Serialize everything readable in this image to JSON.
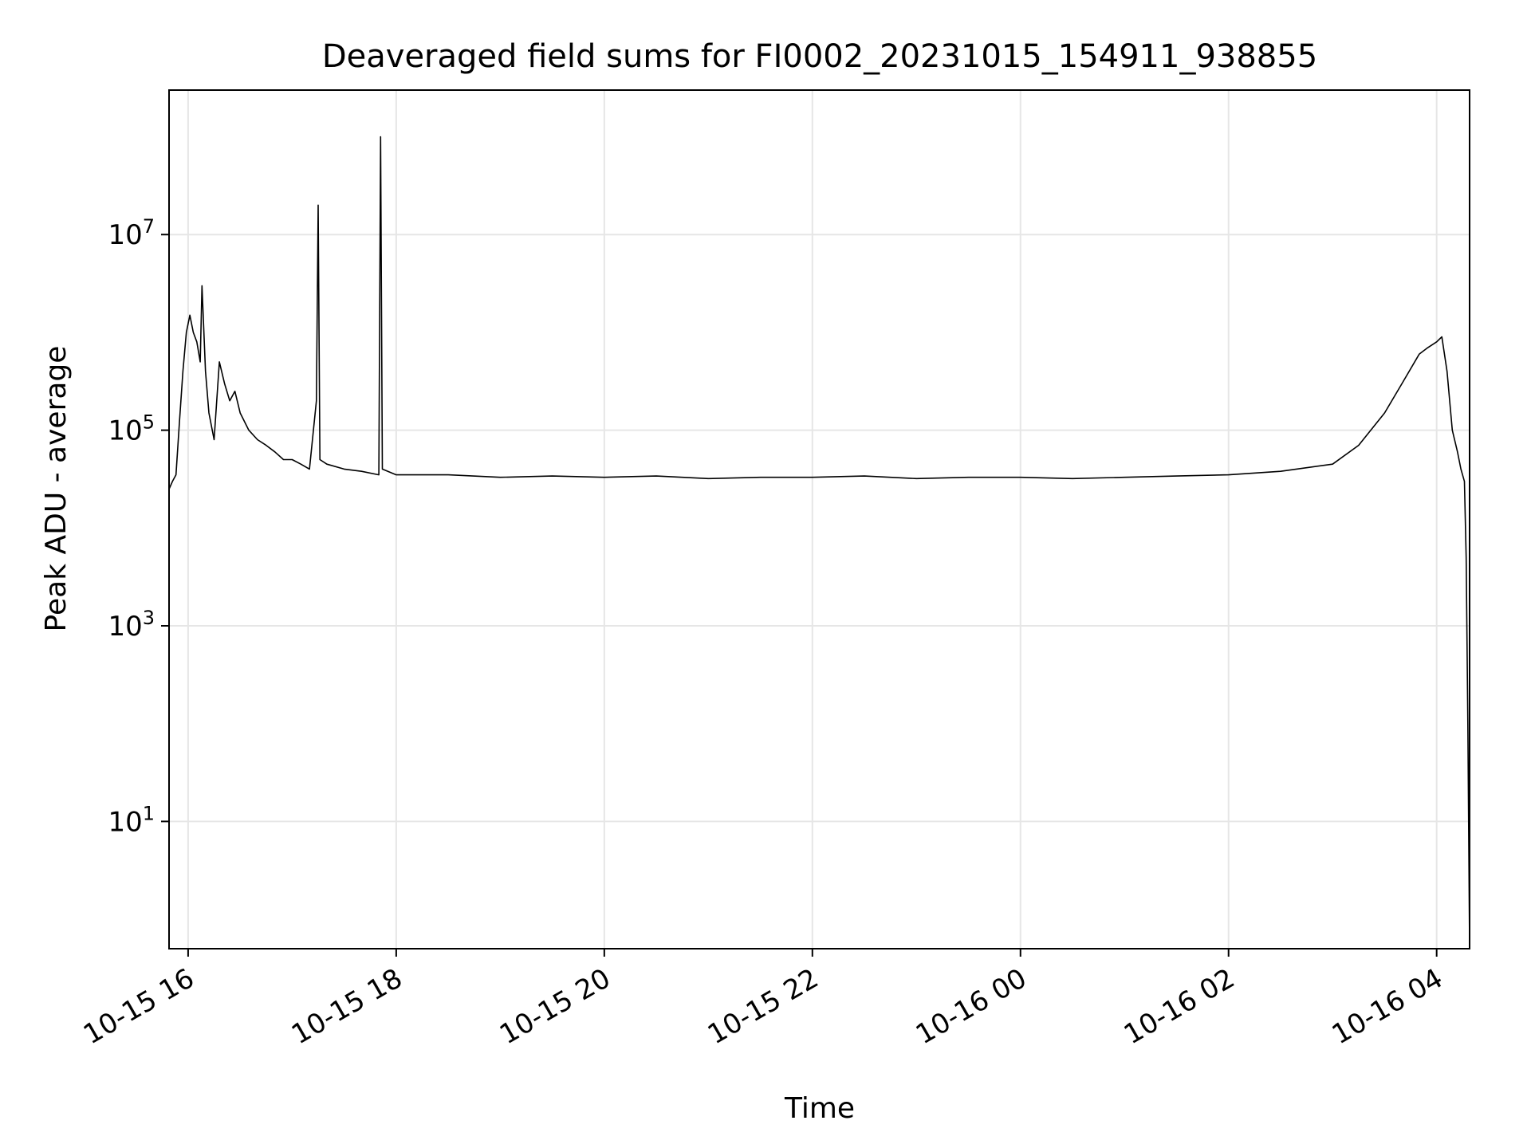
{
  "chart_data": {
    "type": "line",
    "title": "Deaveraged field sums for FI0002_20231015_154911_938855",
    "xlabel": "Time",
    "ylabel": "Peak ADU - average",
    "y_scale": "log",
    "xlim": [
      "2023-10-15 15:49",
      "2023-10-16 04:19"
    ],
    "ylim": [
      0.5,
      300000000
    ],
    "grid": true,
    "line_color": "#000000",
    "grid_color": "#e6e6e6",
    "x_ticks": [
      {
        "value": "2023-10-15 16:00",
        "label": "10-15 16"
      },
      {
        "value": "2023-10-15 18:00",
        "label": "10-15 18"
      },
      {
        "value": "2023-10-15 20:00",
        "label": "10-15 20"
      },
      {
        "value": "2023-10-15 22:00",
        "label": "10-15 22"
      },
      {
        "value": "2023-10-16 00:00",
        "label": "10-16 00"
      },
      {
        "value": "2023-10-16 02:00",
        "label": "10-16 02"
      },
      {
        "value": "2023-10-16 04:00",
        "label": "10-16 04"
      }
    ],
    "y_ticks": [
      {
        "value": 10,
        "base": "10",
        "exp": "1"
      },
      {
        "value": 1000,
        "base": "10",
        "exp": "3"
      },
      {
        "value": 100000,
        "base": "10",
        "exp": "5"
      },
      {
        "value": 10000000,
        "base": "10",
        "exp": "7"
      }
    ],
    "series": [
      {
        "x": [
          "2023-10-15 15:49",
          "2023-10-15 15:51",
          "2023-10-15 15:53",
          "2023-10-15 15:55",
          "2023-10-15 15:57",
          "2023-10-15 15:59",
          "2023-10-15 16:01",
          "2023-10-15 16:03",
          "2023-10-15 16:05",
          "2023-10-15 16:07",
          "2023-10-15 16:08",
          "2023-10-15 16:10",
          "2023-10-15 16:12",
          "2023-10-15 16:15",
          "2023-10-15 16:18",
          "2023-10-15 16:21",
          "2023-10-15 16:24",
          "2023-10-15 16:27",
          "2023-10-15 16:30",
          "2023-10-15 16:35",
          "2023-10-15 16:40",
          "2023-10-15 16:45",
          "2023-10-15 16:50",
          "2023-10-15 16:55",
          "2023-10-15 17:00",
          "2023-10-15 17:05",
          "2023-10-15 17:10",
          "2023-10-15 17:14",
          "2023-10-15 17:15",
          "2023-10-15 17:16",
          "2023-10-15 17:20",
          "2023-10-15 17:30",
          "2023-10-15 17:40",
          "2023-10-15 17:50",
          "2023-10-15 17:51",
          "2023-10-15 17:52",
          "2023-10-15 18:00",
          "2023-10-15 18:30",
          "2023-10-15 19:00",
          "2023-10-15 19:30",
          "2023-10-15 20:00",
          "2023-10-15 20:30",
          "2023-10-15 21:00",
          "2023-10-15 21:30",
          "2023-10-15 22:00",
          "2023-10-15 22:30",
          "2023-10-15 23:00",
          "2023-10-15 23:30",
          "2023-10-16 00:00",
          "2023-10-16 00:30",
          "2023-10-16 01:00",
          "2023-10-16 01:30",
          "2023-10-16 02:00",
          "2023-10-16 02:30",
          "2023-10-16 03:00",
          "2023-10-16 03:15",
          "2023-10-16 03:30",
          "2023-10-16 03:40",
          "2023-10-16 03:50",
          "2023-10-16 03:55",
          "2023-10-16 04:00",
          "2023-10-16 04:03",
          "2023-10-16 04:06",
          "2023-10-16 04:09",
          "2023-10-16 04:12",
          "2023-10-16 04:14",
          "2023-10-16 04:16",
          "2023-10-16 04:17",
          "2023-10-16 04:18",
          "2023-10-16 04:19"
        ],
        "y": [
          25000,
          30000,
          35000,
          120000,
          400000,
          1000000,
          1500000,
          1000000,
          800000,
          500000,
          3000000,
          400000,
          150000,
          80000,
          500000,
          300000,
          200000,
          250000,
          150000,
          100000,
          80000,
          70000,
          60000,
          50000,
          50000,
          45000,
          40000,
          200000,
          20000000,
          50000,
          45000,
          40000,
          38000,
          35000,
          100000000,
          40000,
          35000,
          35000,
          33000,
          34000,
          33000,
          34000,
          32000,
          33000,
          33000,
          34000,
          32000,
          33000,
          33000,
          32000,
          33000,
          34000,
          35000,
          38000,
          45000,
          70000,
          150000,
          300000,
          600000,
          700000,
          800000,
          900000,
          400000,
          100000,
          60000,
          40000,
          30000,
          5000,
          100,
          0.5
        ]
      }
    ]
  }
}
